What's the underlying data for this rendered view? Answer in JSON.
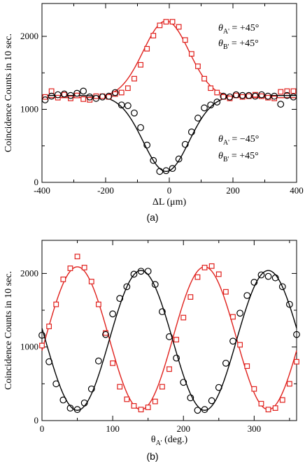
{
  "chart_data": [
    {
      "type": "scatter",
      "panel_label": "(a)",
      "xlabel": "ΔL (μm)",
      "ylabel": "Coincidence Counts in 10 sec.",
      "xlim": [
        -400,
        400
      ],
      "ylim": [
        0,
        2450
      ],
      "xticks": [
        -400,
        -200,
        0,
        200,
        400
      ],
      "yticks": [
        0,
        1000,
        2000
      ],
      "grid": false,
      "annotations": [
        {
          "id": "a1",
          "theta": "θ",
          "sub": "A'",
          "rest": " = +45°",
          "series": "red"
        },
        {
          "id": "a2",
          "theta": "θ",
          "sub": "B'",
          "rest": " = +45°",
          "series": "red"
        },
        {
          "id": "a3",
          "theta": "θ",
          "sub": "A'",
          "rest": " = −45°",
          "series": "black"
        },
        {
          "id": "a4",
          "theta": "θ",
          "sub": "B'",
          "rest": " = +45°",
          "series": "black"
        }
      ],
      "series": [
        {
          "marker": "square",
          "color": "#e0201c",
          "fit": {
            "kind": "gauss",
            "base": 1160,
            "amp": 1050,
            "center": -10,
            "sigma": 72
          },
          "x": [
            -390,
            -370,
            -350,
            -330,
            -310,
            -290,
            -270,
            -250,
            -230,
            -210,
            -190,
            -170,
            -150,
            -130,
            -110,
            -90,
            -70,
            -50,
            -30,
            -10,
            10,
            30,
            50,
            70,
            90,
            110,
            130,
            150,
            170,
            190,
            210,
            230,
            250,
            270,
            290,
            310,
            330,
            350,
            370,
            390
          ],
          "y": [
            1170,
            1250,
            1160,
            1200,
            1150,
            1190,
            1140,
            1130,
            1180,
            1180,
            1170,
            1210,
            1230,
            1290,
            1420,
            1610,
            1830,
            2010,
            2150,
            2200,
            2200,
            2130,
            1950,
            1760,
            1590,
            1420,
            1290,
            1230,
            1170,
            1150,
            1190,
            1170,
            1180,
            1200,
            1180,
            1160,
            1150,
            1240,
            1250,
            1250
          ]
        },
        {
          "marker": "circle",
          "color": "#000000",
          "fit": {
            "kind": "gauss",
            "base": 1190,
            "amp": -1040,
            "center": -10,
            "sigma": 72
          },
          "x": [
            -390,
            -370,
            -350,
            -330,
            -310,
            -290,
            -270,
            -250,
            -230,
            -210,
            -190,
            -170,
            -150,
            -130,
            -110,
            -90,
            -70,
            -50,
            -30,
            -10,
            10,
            30,
            50,
            70,
            90,
            110,
            130,
            150,
            170,
            190,
            210,
            230,
            250,
            270,
            290,
            310,
            330,
            350,
            370,
            390
          ],
          "y": [
            1130,
            1180,
            1200,
            1210,
            1190,
            1220,
            1250,
            1170,
            1150,
            1170,
            1180,
            1230,
            1060,
            1050,
            950,
            750,
            510,
            300,
            150,
            160,
            190,
            320,
            520,
            690,
            880,
            1020,
            1060,
            1100,
            1180,
            1170,
            1200,
            1190,
            1190,
            1180,
            1200,
            1180,
            1180,
            1070,
            1190,
            1170
          ]
        }
      ]
    },
    {
      "type": "scatter",
      "panel_label": "(b)",
      "xlabel_main": "θ",
      "xlabel_sub": "A'",
      "xlabel_rest": " (deg.)",
      "ylabel": "Coincidence Counts in 10 sec.",
      "xlim": [
        0,
        360
      ],
      "ylim": [
        0,
        2450
      ],
      "xticks": [
        0,
        100,
        200,
        300
      ],
      "yticks": [
        0,
        1000,
        2000
      ],
      "grid": false,
      "series": [
        {
          "marker": "square",
          "color": "#e0201c",
          "fit": {
            "kind": "cos",
            "mean": 1120,
            "amp": 970,
            "phase": 50
          },
          "x": [
            0,
            10,
            20,
            30,
            40,
            50,
            60,
            70,
            80,
            90,
            100,
            110,
            120,
            130,
            140,
            150,
            160,
            170,
            180,
            190,
            200,
            210,
            220,
            230,
            240,
            250,
            260,
            270,
            280,
            290,
            300,
            310,
            320,
            330,
            340,
            350,
            360
          ],
          "y": [
            1020,
            1280,
            1580,
            1920,
            2070,
            2230,
            2080,
            1890,
            1580,
            1190,
            780,
            460,
            290,
            200,
            150,
            180,
            260,
            460,
            700,
            1100,
            1400,
            1680,
            1950,
            2080,
            2100,
            1990,
            1750,
            1410,
            1030,
            740,
            430,
            230,
            150,
            170,
            280,
            500,
            800
          ]
        },
        {
          "marker": "circle",
          "color": "#000000",
          "fit": {
            "kind": "cos",
            "mean": 1090,
            "amp": 950,
            "phase": 140
          },
          "x": [
            0,
            10,
            20,
            30,
            40,
            50,
            60,
            70,
            80,
            90,
            100,
            110,
            120,
            130,
            140,
            150,
            160,
            170,
            180,
            190,
            200,
            210,
            220,
            230,
            240,
            250,
            260,
            270,
            280,
            290,
            300,
            310,
            320,
            330,
            340,
            350,
            360
          ],
          "y": [
            1160,
            800,
            500,
            280,
            170,
            150,
            240,
            430,
            810,
            1170,
            1450,
            1660,
            1820,
            1990,
            2030,
            2030,
            1850,
            1480,
            1140,
            850,
            520,
            310,
            140,
            150,
            270,
            450,
            780,
            1080,
            1460,
            1700,
            1880,
            1980,
            1960,
            1940,
            1820,
            1580,
            1170
          ]
        }
      ]
    }
  ]
}
